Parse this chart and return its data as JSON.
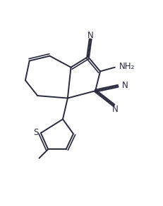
{
  "background_color": "#ffffff",
  "line_color": "#2a2a3e",
  "line_width": 1.4,
  "figsize": [
    2.31,
    2.93
  ],
  "dpi": 100,
  "xlim": [
    0,
    10
  ],
  "ylim": [
    0,
    12.7
  ]
}
